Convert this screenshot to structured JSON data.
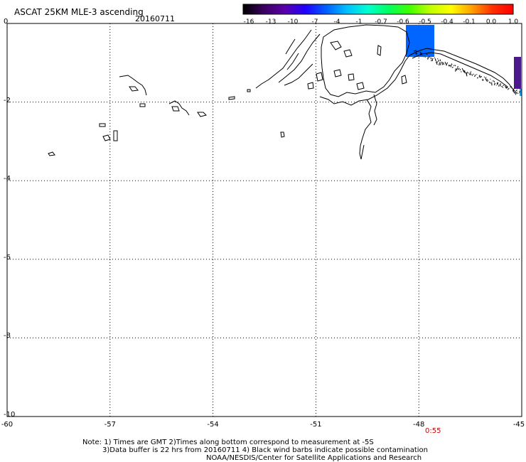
{
  "header": {
    "title": "ASCAT 25KM MLE-3 ascending",
    "date": "20160711"
  },
  "colorbar": {
    "tick_labels": [
      "-16",
      "-13",
      "-10",
      "-7",
      "-4",
      "-1",
      "-0.7",
      "-0.6",
      "-0.5",
      "-0.4",
      "-0.1",
      "0.0",
      "1.0"
    ],
    "stops": [
      "#000000",
      "#3b0060",
      "#5a00a8",
      "#2000ff",
      "#0060ff",
      "#00c0ff",
      "#00ffd0",
      "#00ff60",
      "#40ff00",
      "#c0ff00",
      "#ffff00",
      "#ffa000",
      "#ff3000",
      "#ff0000"
    ]
  },
  "map": {
    "lon_range": [
      -60,
      -45
    ],
    "lat_range": [
      -10,
      0
    ],
    "x_tick_labels": [
      "-60",
      "-57",
      "-54",
      "-51",
      "-48",
      "-45"
    ],
    "y_tick_labels": [
      "0",
      "-2",
      "-4",
      "-6",
      "-8",
      "-10"
    ],
    "grid": true,
    "gridline_style": "dotted",
    "swath_colors": [
      "#0066ff",
      "#4a1a8c"
    ]
  },
  "time_label": "0:55",
  "footer": {
    "note_line1": "Note: 1) Times are GMT 2)Times along bottom correspond to measurement at -5S",
    "note_line2": "3)Data buffer is 22 hrs from 20160711 4) Black wind barbs indicate possible contamination",
    "credit": "NOAA/NESDIS/Center for Satellite Applications and Research"
  }
}
